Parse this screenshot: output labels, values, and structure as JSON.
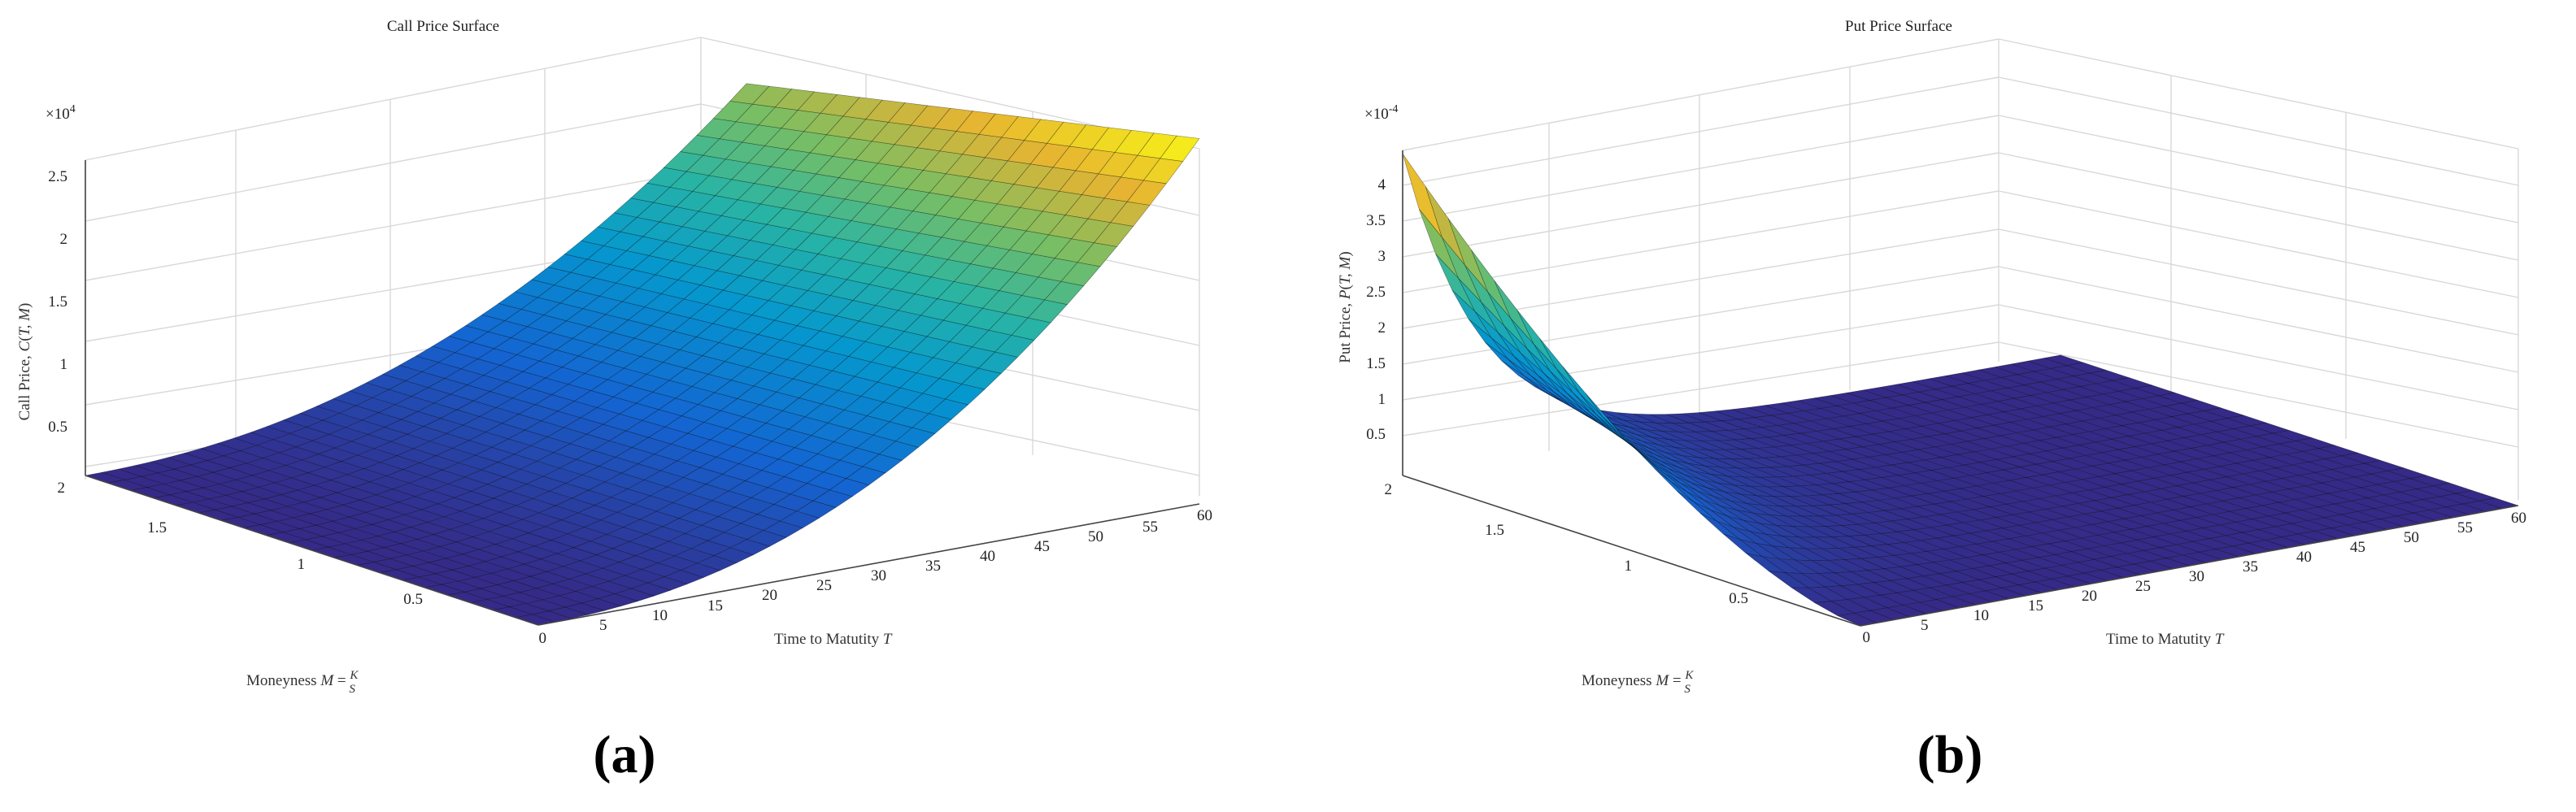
{
  "chart_data": [
    {
      "type": "surface",
      "panel_label": "(a)",
      "title": "Call Price Surface",
      "xlabel": "Time to Matutity T",
      "ylabel": "Moneyness M = K/S",
      "zlabel": "Call Price, C(T, M)",
      "zexponent": "×10^4",
      "xlim": [
        0,
        60
      ],
      "ylim": [
        0,
        2
      ],
      "zlim": [
        0,
        2.5
      ],
      "xticks": [
        "5",
        "10",
        "15",
        "20",
        "25",
        "30",
        "35",
        "40",
        "45",
        "50",
        "55",
        "60"
      ],
      "yticks": [
        "0",
        "0.5",
        "1",
        "1.5",
        "2"
      ],
      "zticks": [
        "0.5",
        "1",
        "1.5",
        "2",
        "2.5"
      ],
      "grid": true,
      "colormap": "parula",
      "surface_points": [
        {
          "T": 0,
          "M": 0,
          "value": 0
        },
        {
          "T": 0,
          "M": 2,
          "value": 0
        },
        {
          "T": 60,
          "M": 0,
          "value": 2.9
        },
        {
          "T": 60,
          "M": 2,
          "value": 2.15
        }
      ]
    },
    {
      "type": "surface",
      "panel_label": "(b)",
      "title": "Put Price Surface",
      "xlabel": "Time to Matutity T",
      "ylabel": "Moneyness M = K/S",
      "zlabel": "Put Price, P(T, M)",
      "zexponent": "×10^-4",
      "xlim": [
        0,
        60
      ],
      "ylim": [
        0,
        2
      ],
      "zlim": [
        0,
        4.5
      ],
      "xticks": [
        "5",
        "10",
        "15",
        "20",
        "25",
        "30",
        "35",
        "40",
        "45",
        "50",
        "55",
        "60"
      ],
      "yticks": [
        "0",
        "0.5",
        "1",
        "1.5",
        "2"
      ],
      "zticks": [
        "0.5",
        "1",
        "1.5",
        "2",
        "2.5",
        "3",
        "3.5",
        "4"
      ],
      "grid": true,
      "colormap": "parula",
      "surface_points": [
        {
          "T": 0,
          "M": 2,
          "value": 4.4
        },
        {
          "T": 0,
          "M": 0,
          "value": 0
        },
        {
          "T": 60,
          "M": 0,
          "value": 0
        },
        {
          "T": 60,
          "M": 2,
          "value": 0
        }
      ]
    }
  ]
}
